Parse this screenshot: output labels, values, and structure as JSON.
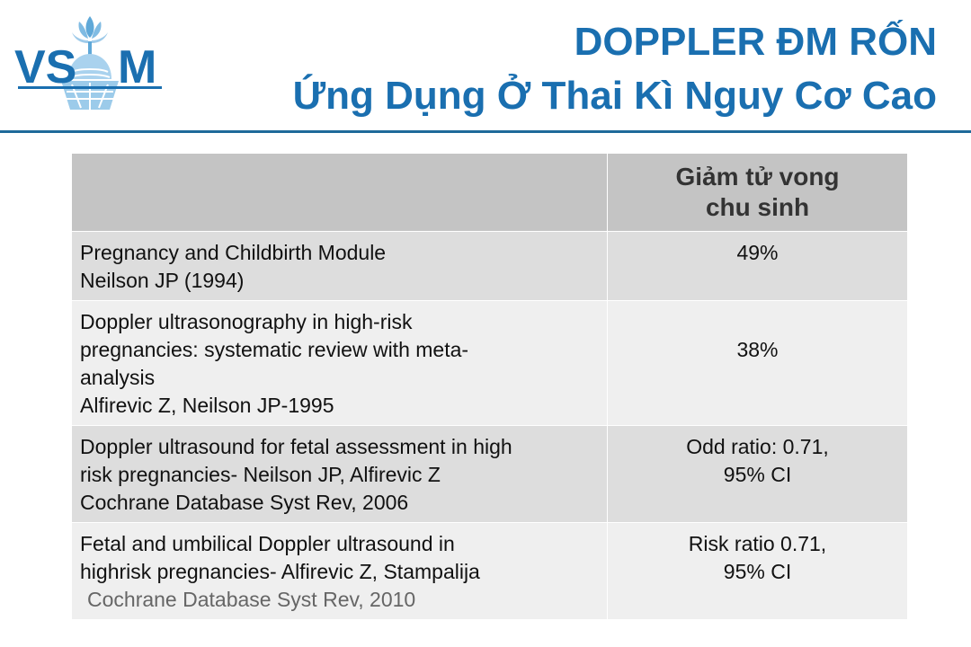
{
  "logo": {
    "text": "VSUM",
    "colors": {
      "primary": "#1a6fb0",
      "light": "#5fa8d8"
    }
  },
  "header": {
    "title_line1": "DOPPLER ĐM RỐN",
    "title_line2": "Ứng Dụng Ở Thai Kì Nguy Cơ Cao",
    "accent_color": "#1a6fb0"
  },
  "table": {
    "header": {
      "col1": "",
      "col2_line1": "Giảm tử vong",
      "col2_line2": "chu sinh"
    },
    "rows": [
      {
        "study_lines": [
          "Pregnancy and Childbirth Module",
          "Neilson JP (1994)"
        ],
        "value_lines": [
          "49%"
        ]
      },
      {
        "study_lines": [
          "Doppler ultrasonography in high-risk",
          "pregnancies: systematic review with meta-",
          "analysis",
          "Alfirevic Z, Neilson JP-1995"
        ],
        "value_lines": [
          "38%"
        ]
      },
      {
        "study_lines": [
          "Doppler ultrasound for fetal assessment in high",
          "risk pregnancies- Neilson JP, Alfirevic Z",
          "Cochrane Database Syst Rev, 2006"
        ],
        "value_lines": [
          "Odd ratio: 0.71,",
          "95% CI"
        ]
      },
      {
        "study_lines": [
          "Fetal and umbilical Doppler ultrasound in",
          "highrisk pregnancies- Alfirevic Z, Stampalija",
          "Cochrane Database Syst Rev, 2010"
        ],
        "value_lines": [
          "Risk ratio  0.71,",
          "95% CI"
        ]
      }
    ]
  }
}
